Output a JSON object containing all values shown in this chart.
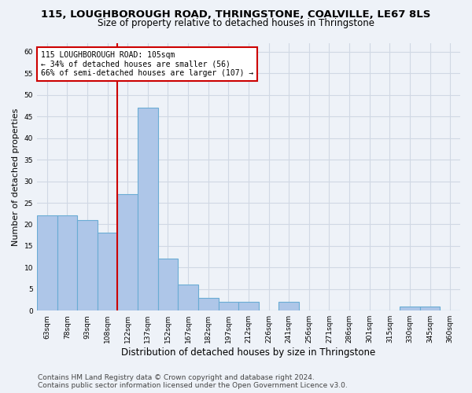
{
  "title": "115, LOUGHBOROUGH ROAD, THRINGSTONE, COALVILLE, LE67 8LS",
  "subtitle": "Size of property relative to detached houses in Thringstone",
  "xlabel": "Distribution of detached houses by size in Thringstone",
  "ylabel": "Number of detached properties",
  "categories": [
    "63sqm",
    "78sqm",
    "93sqm",
    "108sqm",
    "122sqm",
    "137sqm",
    "152sqm",
    "167sqm",
    "182sqm",
    "197sqm",
    "212sqm",
    "226sqm",
    "241sqm",
    "256sqm",
    "271sqm",
    "286sqm",
    "301sqm",
    "315sqm",
    "330sqm",
    "345sqm",
    "360sqm"
  ],
  "values": [
    22,
    22,
    21,
    18,
    27,
    47,
    12,
    6,
    3,
    2,
    2,
    0,
    2,
    0,
    0,
    0,
    0,
    0,
    1,
    1,
    0
  ],
  "bar_color": "#aec6e8",
  "bar_edge_color": "#6aacd4",
  "bar_linewidth": 0.8,
  "vline_x_index": 3,
  "vline_color": "#cc0000",
  "annotation_text": "115 LOUGHBOROUGH ROAD: 105sqm\n← 34% of detached houses are smaller (56)\n66% of semi-detached houses are larger (107) →",
  "annotation_box_color": "#ffffff",
  "annotation_box_edge_color": "#cc0000",
  "annotation_fontsize": 7.0,
  "ylim": [
    0,
    62
  ],
  "yticks": [
    0,
    5,
    10,
    15,
    20,
    25,
    30,
    35,
    40,
    45,
    50,
    55,
    60
  ],
  "grid_color": "#d0d8e4",
  "background_color": "#eef2f8",
  "footer_line1": "Contains HM Land Registry data © Crown copyright and database right 2024.",
  "footer_line2": "Contains public sector information licensed under the Open Government Licence v3.0.",
  "title_fontsize": 9.5,
  "subtitle_fontsize": 8.5,
  "xlabel_fontsize": 8.5,
  "ylabel_fontsize": 8.0,
  "tick_fontsize": 6.5,
  "footer_fontsize": 6.5
}
